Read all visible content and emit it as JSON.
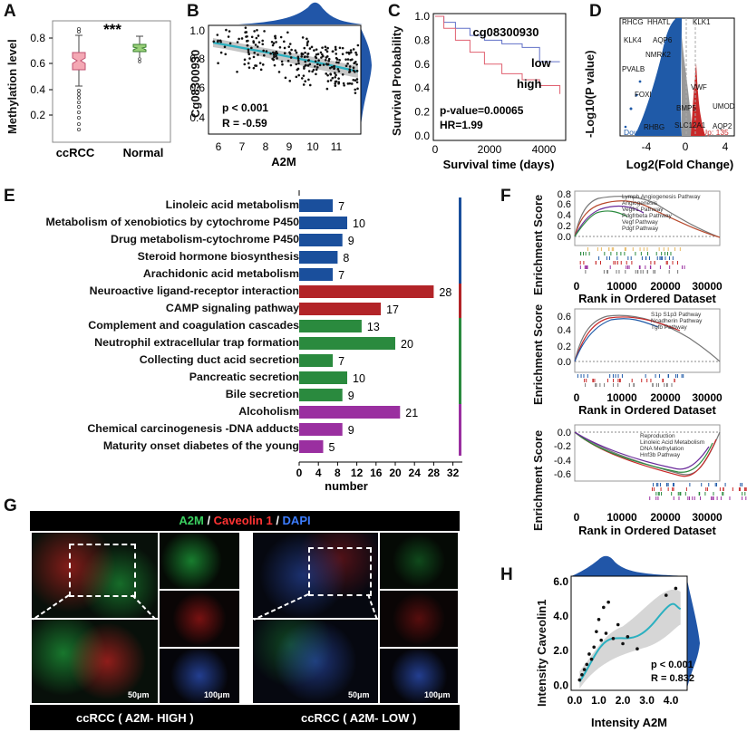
{
  "panels": {
    "A": {
      "label": "A",
      "ylabel": "Methylation level",
      "yticks": [
        "0.8",
        "0.6",
        "0.4",
        "0.2"
      ],
      "groups": [
        "ccRCC",
        "Normal"
      ],
      "significance": "***",
      "colors": {
        "ccRCC": "#f4a8b4",
        "Normal": "#9ad07a"
      }
    },
    "B": {
      "label": "B",
      "ylabel": "Cg08300930",
      "xlabel": "A2M",
      "yticks": [
        "1.0",
        "0.8",
        "0.6",
        "0.4"
      ],
      "xticks": [
        "6",
        "7",
        "8",
        "9",
        "10",
        "11"
      ],
      "stat_p": "p < 0.001",
      "stat_r": "R = -0.59"
    },
    "C": {
      "label": "C",
      "ylabel": "Survival Probability",
      "xlabel": "Survival time (days)",
      "title": "cg08300930",
      "yticks": [
        "1.0",
        "0.8",
        "0.6",
        "0.4",
        "0.2",
        "0.0"
      ],
      "xticks": [
        "0",
        "2000",
        "4000"
      ],
      "legend_low": "low",
      "legend_high": "high",
      "pvalue": "p-value=0.00065",
      "hr": "HR=1.99"
    },
    "D": {
      "label": "D",
      "ylabel": "-Log10(P value)",
      "xlabel": "Log2(Fold Change)",
      "xticks": [
        "-4",
        "0",
        "4"
      ],
      "down": "Down: 5808",
      "up": "Up: 135",
      "genes": [
        "RHCG",
        "HHATL",
        "KLK1",
        "KLK4",
        "AQP6",
        "NMRK2",
        "PVALB",
        "VWF",
        "FOXI",
        "UMOD",
        "BMP5",
        "RHBG",
        "SLC12A1",
        "AQP2"
      ]
    },
    "E": {
      "label": "E",
      "xlabel": "number",
      "xticks": [
        "0",
        "4",
        "8",
        "12",
        "16",
        "20",
        "24",
        "28",
        "32"
      ]
    },
    "F": {
      "label": "F",
      "ylabel": "Enrichment Score",
      "xlabel": "Rank in Ordered Dataset",
      "xticks": [
        "0",
        "10000",
        "20000",
        "30000"
      ],
      "plot1": {
        "yticks": [
          "0.8",
          "0.6",
          "0.4",
          "0.2",
          "0.0"
        ],
        "legend": [
          "Lymph Angiogenesis Pathway",
          "Angiogenesis",
          "Vegfr1 Pathway",
          "Pdgfrbeta Pathway",
          "Vegf Pathway",
          "Pdgf Pathway"
        ]
      },
      "plot2": {
        "yticks": [
          "0.6",
          "0.4",
          "0.2",
          "0.0"
        ],
        "legend": [
          "S1p S1p3 Pathway",
          "Ncadherin Pathway",
          "Tgfb Pathway"
        ]
      },
      "plot3": {
        "yticks": [
          "0.0",
          "-0.2",
          "-0.4",
          "-0.6"
        ],
        "legend": [
          "Reproduction",
          "Linoleic Acid Metabolism",
          "DNA Methylation",
          "Hnf3b Pathway"
        ]
      }
    },
    "G": {
      "label": "G",
      "title_a2m": "A2M",
      "title_sep1": " / ",
      "title_cav": "Caveolin 1",
      "title_sep2": " / ",
      "title_dapi": "DAPI",
      "scale_big": "50μm",
      "scale_small": "100μm",
      "caption_high": "ccRCC ( A2M- HIGH )",
      "caption_low": "ccRCC ( A2M- LOW )"
    },
    "H": {
      "label": "H",
      "ylabel": "Intensity Caveolin1",
      "xlabel": "Intensity A2M",
      "yticks": [
        "6.0",
        "4.0",
        "2.0",
        "0.0"
      ],
      "xticks": [
        "0.0",
        "1.0",
        "2.0",
        "3.0",
        "4.0"
      ],
      "stat_p": "p < 0.001",
      "stat_r": "R = 0.832"
    }
  },
  "chart_data": [
    {
      "panel": "E",
      "type": "bar",
      "orientation": "horizontal",
      "categories": [
        "Linoleic acid metabolism",
        "Metabolism of xenobiotics by cytochrome P450",
        "Drug metabolism-cytochrome P450",
        "Steroid hormone biosynthesis",
        "Arachidonic acid metabolism",
        "Neuroactive ligand-receptor interaction",
        "CAMP signaling pathway",
        "Complement and coagulation cascades",
        "Neutrophil extracellular trap formation",
        "Collecting duct acid secretion",
        "Pancreatic secretion",
        "Bile secretion",
        "Alcoholism",
        "Chemical carcinogenesis -DNA adducts",
        "Maturity onset diabetes of the young"
      ],
      "values": [
        7,
        10,
        9,
        8,
        7,
        28,
        17,
        13,
        20,
        7,
        10,
        9,
        21,
        9,
        5
      ],
      "group_colors": [
        "#1a4f9c",
        "#1a4f9c",
        "#1a4f9c",
        "#1a4f9c",
        "#1a4f9c",
        "#b22428",
        "#b22428",
        "#2a8a3e",
        "#2a8a3e",
        "#2a8a3e",
        "#2a8a3e",
        "#2a8a3e",
        "#9a2fa0",
        "#9a2fa0",
        "#9a2fa0"
      ],
      "xlabel": "number",
      "xlim": [
        0,
        32
      ]
    },
    {
      "panel": "C",
      "type": "line",
      "series": [
        {
          "name": "low",
          "x": [
            0,
            300,
            700,
            1200,
            1700,
            2300,
            3000,
            3600,
            4300
          ],
          "y": [
            1.0,
            0.95,
            0.9,
            0.84,
            0.8,
            0.77,
            0.74,
            0.62,
            0.62
          ],
          "color": "#6070c8"
        },
        {
          "name": "high",
          "x": [
            0,
            300,
            700,
            1200,
            1700,
            2300,
            3000,
            3600,
            4300
          ],
          "y": [
            1.0,
            0.9,
            0.8,
            0.7,
            0.6,
            0.52,
            0.47,
            0.42,
            0.35
          ],
          "color": "#e06070"
        }
      ],
      "xlabel": "Survival time (days)",
      "ylabel": "Survival Probability",
      "ylim": [
        0,
        1
      ],
      "xlim": [
        0,
        4500
      ]
    },
    {
      "panel": "A",
      "type": "box",
      "categories": [
        "ccRCC",
        "Normal"
      ],
      "series": [
        {
          "name": "ccRCC",
          "q1": 0.53,
          "median": 0.62,
          "q3": 0.66,
          "whisker_low": 0.37,
          "whisker_high": 0.79
        },
        {
          "name": "Normal",
          "q1": 0.67,
          "median": 0.7,
          "q3": 0.72,
          "whisker_low": 0.61,
          "whisker_high": 0.76
        }
      ],
      "ylabel": "Methylation level"
    },
    {
      "panel": "H",
      "type": "scatter",
      "x": [
        0.2,
        0.3,
        0.4,
        0.5,
        0.6,
        0.7,
        0.8,
        0.9,
        1.0,
        1.1,
        1.2,
        1.3,
        1.4,
        1.6,
        1.8,
        2.0,
        2.2,
        2.6,
        3.8,
        4.2
      ],
      "y": [
        0.3,
        0.6,
        0.9,
        1.2,
        1.8,
        1.5,
        2.2,
        3.1,
        3.8,
        2.6,
        4.5,
        3.0,
        4.8,
        2.7,
        3.5,
        2.4,
        2.8,
        2.1,
        5.2,
        5.6
      ],
      "xlabel": "Intensity A2M",
      "ylabel": "Intensity Caveolin1",
      "xlim": [
        0,
        4.6
      ],
      "ylim": [
        -0.3,
        6.2
      ]
    }
  ],
  "colors": {
    "blue": "#1a4f9c",
    "red": "#b22428",
    "green": "#2a8a3e",
    "purple": "#9a2fa0",
    "teal": "#2ab0c0",
    "density": "#2156a8"
  }
}
